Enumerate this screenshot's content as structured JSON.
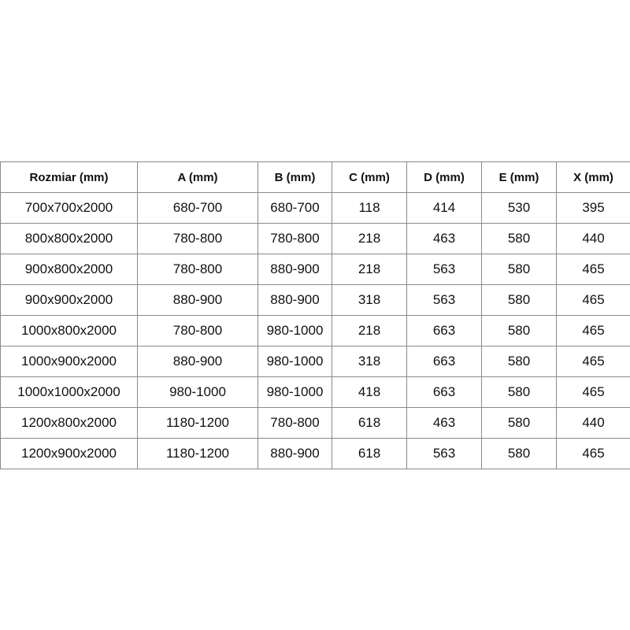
{
  "table": {
    "headers": [
      "Rozmiar (mm)",
      "A (mm)",
      "B (mm)",
      "C (mm)",
      "D (mm)",
      "E (mm)",
      "X (mm)"
    ],
    "rows": [
      [
        "700x700x2000",
        "680-700",
        "680-700",
        "118",
        "414",
        "530",
        "395"
      ],
      [
        "800x800x2000",
        "780-800",
        "780-800",
        "218",
        "463",
        "580",
        "440"
      ],
      [
        "900x800x2000",
        "780-800",
        "880-900",
        "218",
        "563",
        "580",
        "465"
      ],
      [
        "900x900x2000",
        "880-900",
        "880-900",
        "318",
        "563",
        "580",
        "465"
      ],
      [
        "1000x800x2000",
        "780-800",
        "980-1000",
        "218",
        "663",
        "580",
        "465"
      ],
      [
        "1000x900x2000",
        "880-900",
        "980-1000",
        "318",
        "663",
        "580",
        "465"
      ],
      [
        "1000x1000x2000",
        "980-1000",
        "980-1000",
        "418",
        "663",
        "580",
        "465"
      ],
      [
        "1200x800x2000",
        "1180-1200",
        "780-800",
        "618",
        "463",
        "580",
        "440"
      ],
      [
        "1200x900x2000",
        "1180-1200",
        "880-900",
        "618",
        "563",
        "580",
        "465"
      ]
    ]
  }
}
